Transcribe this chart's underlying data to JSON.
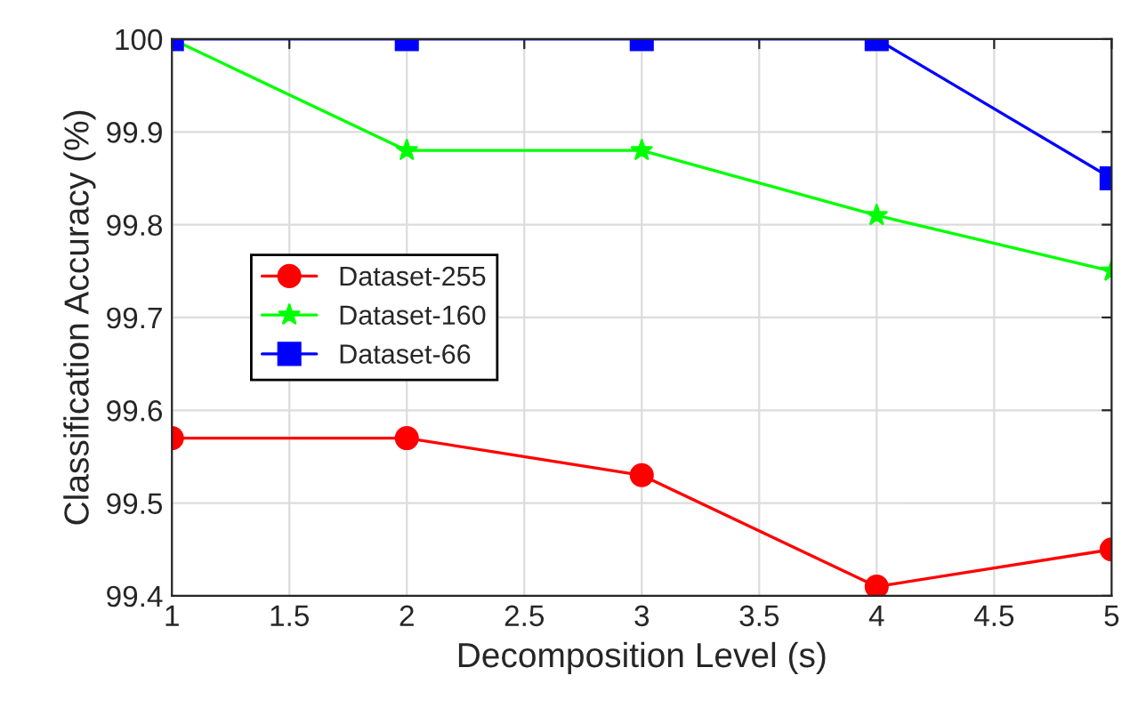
{
  "chart_data": {
    "type": "line",
    "xlabel": "Decomposition Level (s)",
    "ylabel": "Classification Accuracy (%)",
    "x": [
      1,
      2,
      3,
      4,
      5
    ],
    "series": [
      {
        "name": "Dataset-255",
        "color": "#ff0000",
        "marker": "circle",
        "values": [
          99.57,
          99.57,
          99.53,
          99.41,
          99.45
        ]
      },
      {
        "name": "Dataset-160",
        "color": "#00ff00",
        "marker": "star",
        "values": [
          100,
          99.88,
          99.88,
          99.81,
          99.75
        ]
      },
      {
        "name": "Dataset-66",
        "color": "#0000ff",
        "marker": "square",
        "values": [
          100,
          100,
          100,
          100,
          99.85
        ]
      }
    ],
    "xlim": [
      1,
      5
    ],
    "ylim": [
      99.4,
      100
    ],
    "xticks": [
      1,
      1.5,
      2,
      2.5,
      3,
      3.5,
      4,
      4.5,
      5
    ],
    "yticks": [
      99.4,
      99.5,
      99.6,
      99.7,
      99.8,
      99.9,
      100
    ],
    "grid": true,
    "legend": "center left",
    "line_style": "solid"
  }
}
